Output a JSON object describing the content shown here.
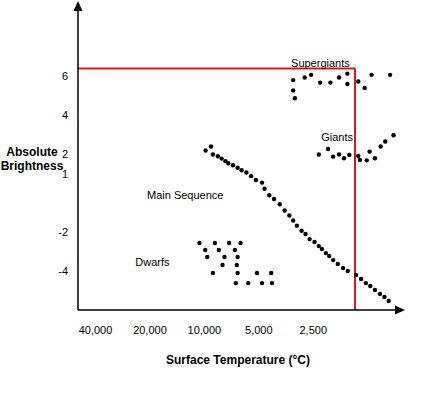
{
  "chart_data": {
    "type": "scatter",
    "x_label": "Surface Temperature (°C)",
    "y_label": "Absolute Brightness",
    "log": "x",
    "grid": false,
    "xlim": [
      50000,
      850
    ],
    "xticks": [
      {
        "value": 40000,
        "label": "40,000"
      },
      {
        "value": 20000,
        "label": "20,000"
      },
      {
        "value": 10000,
        "label": "10,000"
      },
      {
        "value": 5000,
        "label": "5,000"
      },
      {
        "value": 2500,
        "label": "2,500"
      }
    ],
    "ylim": [
      -6,
      9.5
    ],
    "yticks": [
      6,
      4,
      2,
      1,
      -2,
      -4
    ],
    "series": [
      {
        "name": "Supergiants",
        "color": "#000000",
        "x": [
          3230,
          3230,
          3160,
          2790,
          2570,
          2290,
          2010,
          1800,
          1620,
          1620,
          1410,
          1300,
          1190,
          940
        ],
        "y": [
          5.8,
          5.27,
          4.87,
          5.93,
          6.07,
          5.67,
          5.67,
          5.93,
          6.13,
          5.6,
          5.73,
          5.4,
          6.07,
          6.07
        ]
      },
      {
        "name": "Giants",
        "color": "#000000",
        "x": [
          2330,
          2070,
          1940,
          1800,
          1690,
          1580,
          1410,
          1380,
          1265,
          1220,
          1140,
          1060,
          1000,
          900
        ],
        "y": [
          1.98,
          2.26,
          1.87,
          1.98,
          1.79,
          1.96,
          1.91,
          1.7,
          1.68,
          2.13,
          1.79,
          2.39,
          2.65,
          2.97
        ]
      },
      {
        "name": "Main Sequence",
        "color": "#000000",
        "x": [
          9850,
          9200,
          8970,
          8430,
          8030,
          7650,
          7380,
          6950,
          6550,
          6230,
          5860,
          5520,
          5190,
          4800,
          4650,
          4380,
          4120,
          3830,
          3600,
          3390,
          3230,
          3080,
          2900,
          2760,
          2620,
          2460,
          2330,
          2240,
          2130,
          2040,
          1940,
          1830,
          1710,
          1610,
          1450,
          1360,
          1280,
          1210,
          1140,
          1070,
          1010,
          957
        ],
        "y": [
          2.19,
          2.39,
          1.98,
          1.89,
          1.77,
          1.64,
          1.53,
          1.43,
          1.3,
          1.17,
          1.06,
          0.87,
          0.67,
          0.54,
          0.22,
          -0.11,
          -0.3,
          -0.57,
          -0.89,
          -1.15,
          -1.41,
          -1.67,
          -1.93,
          -2.1,
          -2.36,
          -2.51,
          -2.72,
          -2.87,
          -3.08,
          -3.23,
          -3.44,
          -3.64,
          -3.85,
          -4.0,
          -4.21,
          -4.41,
          -4.62,
          -4.77,
          -4.97,
          -5.18,
          -5.33,
          -5.54
        ]
      },
      {
        "name": "Dwarfs",
        "color": "#000000",
        "x": [
          10650,
          8750,
          7300,
          6310,
          9890,
          8320,
          6780,
          9640,
          7750,
          6550,
          7940,
          6620,
          8970,
          6550,
          5120,
          4270,
          6700,
          5720,
          4800,
          4230
        ],
        "y": [
          -2.56,
          -2.56,
          -2.56,
          -2.56,
          -2.92,
          -2.92,
          -2.92,
          -3.28,
          -3.28,
          -3.28,
          -3.69,
          -3.69,
          -4.1,
          -4.1,
          -4.1,
          -4.1,
          -4.62,
          -4.62,
          -4.62,
          -4.62
        ]
      }
    ],
    "reference_lines": [
      {
        "x": 1470,
        "y": 6.4,
        "color": "#d01c1c"
      }
    ]
  }
}
